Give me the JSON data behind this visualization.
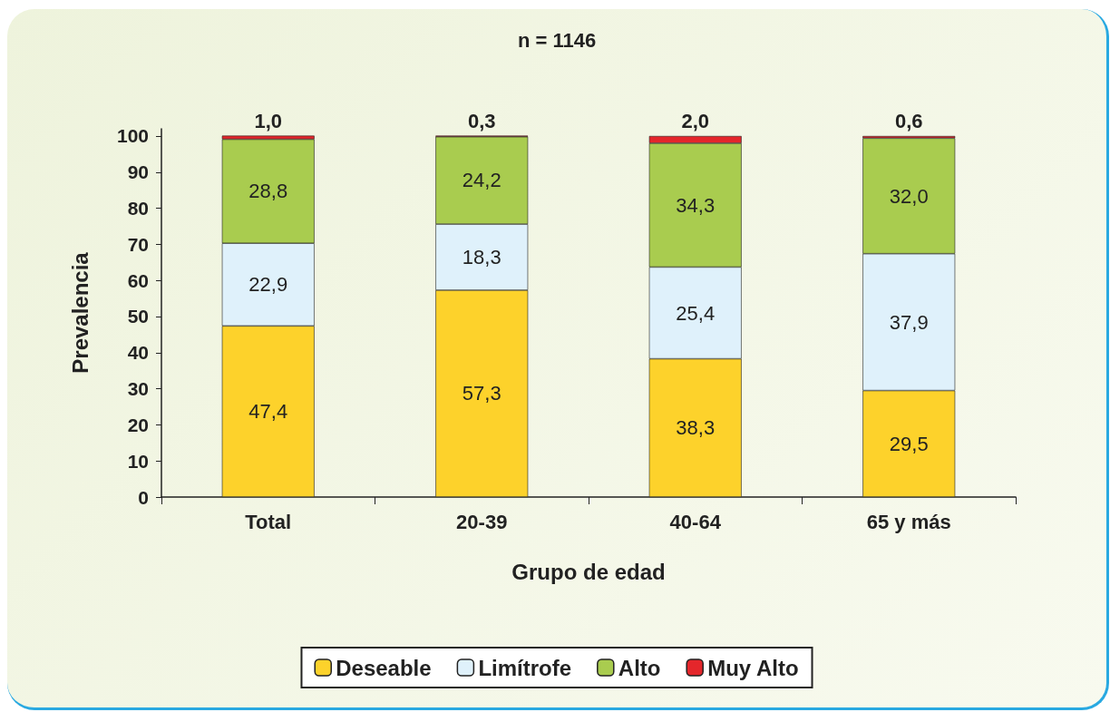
{
  "chart_data": {
    "type": "bar",
    "title": "n = 1146",
    "xlabel": "Grupo de edad",
    "ylabel": "Prevalencia",
    "categories": [
      "Total",
      "20-39",
      "40-64",
      "65 y más"
    ],
    "series": [
      {
        "name": "Deseable",
        "color": "#fdd22b",
        "values": [
          47.4,
          57.3,
          38.3,
          29.5
        ],
        "value_labels": [
          "47,4",
          "57,3",
          "38,3",
          "29,5"
        ]
      },
      {
        "name": "Limítrofe",
        "color": "#dff1fb",
        "values": [
          22.9,
          18.3,
          25.4,
          37.9
        ],
        "value_labels": [
          "22,9",
          "18,3",
          "25,4",
          "37,9"
        ]
      },
      {
        "name": "Alto",
        "color": "#a9cc4f",
        "values": [
          28.8,
          24.2,
          34.3,
          32.0
        ],
        "value_labels": [
          "28,8",
          "24,2",
          "34,3",
          "32,0"
        ]
      },
      {
        "name": "Muy Alto",
        "color": "#e4262b",
        "values": [
          1.0,
          0.3,
          2.0,
          0.6
        ],
        "value_labels": [
          "1,0",
          "0,3",
          "2,0",
          "0,6"
        ]
      }
    ],
    "stacked": true,
    "legend": "bottom",
    "grid": false,
    "ylim": [
      0,
      102
    ],
    "yticks": [
      0,
      10,
      20,
      30,
      40,
      50,
      60,
      70,
      80,
      90,
      100
    ]
  }
}
